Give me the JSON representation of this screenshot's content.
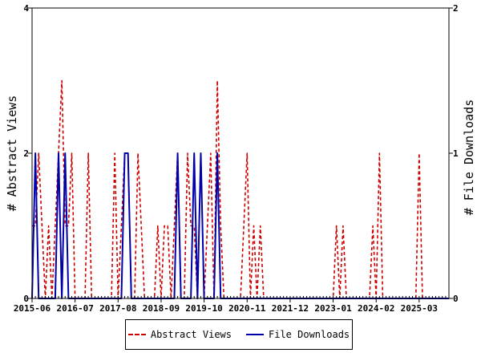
{
  "chart_data": {
    "type": "line",
    "title": "",
    "y_left": {
      "label": "# Abstract Views",
      "ticks": [
        "0",
        "2",
        "4"
      ],
      "range": [
        0,
        4
      ]
    },
    "y_right": {
      "label": "# File Downloads",
      "ticks": [
        "0",
        "1",
        "2"
      ],
      "range": [
        0,
        2
      ]
    },
    "x": {
      "tick_labels": [
        "2015-06",
        "2016-07",
        "2017-08",
        "2018-09",
        "2019-10",
        "2020-11",
        "2021-12",
        "2023-01",
        "2024-02",
        "2025-03"
      ],
      "range": [
        "2015-06",
        "2025-12"
      ]
    },
    "legend_placement": "bottom",
    "grid": false,
    "series": [
      {
        "name": "Abstract Views",
        "axis": "left",
        "style": "dashed",
        "color": "#cc0000",
        "points": [
          [
            "2015-06",
            1
          ],
          [
            "2015-07",
            1
          ],
          [
            "2015-08",
            2
          ],
          [
            "2015-09",
            1
          ],
          [
            "2015-10",
            0
          ],
          [
            "2015-11",
            1
          ],
          [
            "2015-12",
            0
          ],
          [
            "2016-01",
            1
          ],
          [
            "2016-02",
            2
          ],
          [
            "2016-03",
            3
          ],
          [
            "2016-04",
            1
          ],
          [
            "2016-05",
            1
          ],
          [
            "2016-06",
            2
          ],
          [
            "2016-07",
            0
          ],
          [
            "2016-08",
            0
          ],
          [
            "2016-09",
            0
          ],
          [
            "2016-10",
            0
          ],
          [
            "2016-11",
            2
          ],
          [
            "2016-12",
            0
          ],
          [
            "2017-01",
            0
          ],
          [
            "2017-02",
            0
          ],
          [
            "2017-03",
            0
          ],
          [
            "2017-04",
            0
          ],
          [
            "2017-05",
            0
          ],
          [
            "2017-06",
            0
          ],
          [
            "2017-07",
            2
          ],
          [
            "2017-08",
            0
          ],
          [
            "2017-09",
            1
          ],
          [
            "2017-10",
            2
          ],
          [
            "2017-11",
            2
          ],
          [
            "2017-12",
            0
          ],
          [
            "2018-01",
            0
          ],
          [
            "2018-02",
            2
          ],
          [
            "2018-03",
            1
          ],
          [
            "2018-04",
            0
          ],
          [
            "2018-05",
            0
          ],
          [
            "2018-06",
            0
          ],
          [
            "2018-07",
            0
          ],
          [
            "2018-08",
            1
          ],
          [
            "2018-09",
            0
          ],
          [
            "2018-10",
            1
          ],
          [
            "2018-11",
            1
          ],
          [
            "2018-12",
            0
          ],
          [
            "2019-01",
            1
          ],
          [
            "2019-02",
            2
          ],
          [
            "2019-03",
            0
          ],
          [
            "2019-04",
            0
          ],
          [
            "2019-05",
            2
          ],
          [
            "2019-06",
            1
          ],
          [
            "2019-07",
            1
          ],
          [
            "2019-08",
            0
          ],
          [
            "2019-09",
            2
          ],
          [
            "2019-10",
            0
          ],
          [
            "2019-11",
            1
          ],
          [
            "2019-12",
            2
          ],
          [
            "2020-01",
            0
          ],
          [
            "2020-02",
            3
          ],
          [
            "2020-03",
            1
          ],
          [
            "2020-04",
            0
          ],
          [
            "2020-05",
            0
          ],
          [
            "2020-06",
            0
          ],
          [
            "2020-07",
            0
          ],
          [
            "2020-08",
            0
          ],
          [
            "2020-09",
            0
          ],
          [
            "2020-10",
            1
          ],
          [
            "2020-11",
            2
          ],
          [
            "2020-12",
            0
          ],
          [
            "2021-01",
            1
          ],
          [
            "2021-02",
            0
          ],
          [
            "2021-03",
            1
          ],
          [
            "2021-04",
            0
          ],
          [
            "2021-05",
            0
          ],
          [
            "2021-06",
            0
          ],
          [
            "2021-07",
            0
          ],
          [
            "2021-08",
            0
          ],
          [
            "2021-09",
            0
          ],
          [
            "2021-10",
            0
          ],
          [
            "2021-11",
            0
          ],
          [
            "2021-12",
            0
          ],
          [
            "2022-01",
            0
          ],
          [
            "2022-02",
            0
          ],
          [
            "2022-03",
            0
          ],
          [
            "2022-04",
            0
          ],
          [
            "2022-05",
            0
          ],
          [
            "2022-06",
            0
          ],
          [
            "2022-07",
            0
          ],
          [
            "2022-08",
            0
          ],
          [
            "2022-09",
            0
          ],
          [
            "2022-10",
            0
          ],
          [
            "2022-11",
            0
          ],
          [
            "2022-12",
            0
          ],
          [
            "2023-01",
            0
          ],
          [
            "2023-02",
            1
          ],
          [
            "2023-03",
            0
          ],
          [
            "2023-04",
            1
          ],
          [
            "2023-05",
            0
          ],
          [
            "2023-06",
            0
          ],
          [
            "2023-07",
            0
          ],
          [
            "2023-08",
            0
          ],
          [
            "2023-09",
            0
          ],
          [
            "2023-10",
            0
          ],
          [
            "2023-11",
            0
          ],
          [
            "2023-12",
            0
          ],
          [
            "2024-01",
            1
          ],
          [
            "2024-02",
            0
          ],
          [
            "2024-03",
            2
          ],
          [
            "2024-04",
            0
          ],
          [
            "2024-05",
            0
          ],
          [
            "2024-06",
            0
          ],
          [
            "2024-07",
            0
          ],
          [
            "2024-08",
            0
          ],
          [
            "2024-09",
            0
          ],
          [
            "2024-10",
            0
          ],
          [
            "2024-11",
            0
          ],
          [
            "2024-12",
            0
          ],
          [
            "2025-01",
            0
          ],
          [
            "2025-02",
            0
          ],
          [
            "2025-03",
            2
          ],
          [
            "2025-04",
            0
          ],
          [
            "2025-05",
            0
          ],
          [
            "2025-06",
            0
          ],
          [
            "2025-07",
            0
          ],
          [
            "2025-08",
            0
          ],
          [
            "2025-09",
            0
          ],
          [
            "2025-10",
            0
          ],
          [
            "2025-11",
            0
          ],
          [
            "2025-12",
            0
          ]
        ]
      },
      {
        "name": "File Downloads",
        "axis": "right",
        "style": "solid",
        "color": "#0000aa",
        "points": [
          [
            "2015-06",
            0
          ],
          [
            "2015-07",
            1
          ],
          [
            "2015-08",
            0
          ],
          [
            "2015-09",
            0
          ],
          [
            "2015-10",
            0
          ],
          [
            "2015-11",
            0
          ],
          [
            "2015-12",
            0
          ],
          [
            "2016-01",
            0
          ],
          [
            "2016-02",
            1
          ],
          [
            "2016-03",
            0
          ],
          [
            "2016-04",
            1
          ],
          [
            "2016-05",
            0
          ],
          [
            "2016-06",
            0
          ],
          [
            "2016-07",
            0
          ],
          [
            "2016-08",
            0
          ],
          [
            "2016-09",
            0
          ],
          [
            "2016-10",
            0
          ],
          [
            "2016-11",
            0
          ],
          [
            "2016-12",
            0
          ],
          [
            "2017-01",
            0
          ],
          [
            "2017-02",
            0
          ],
          [
            "2017-03",
            0
          ],
          [
            "2017-04",
            0
          ],
          [
            "2017-05",
            0
          ],
          [
            "2017-06",
            0
          ],
          [
            "2017-07",
            0
          ],
          [
            "2017-08",
            0
          ],
          [
            "2017-09",
            0
          ],
          [
            "2017-10",
            1
          ],
          [
            "2017-11",
            1
          ],
          [
            "2017-12",
            0
          ],
          [
            "2018-01",
            0
          ],
          [
            "2018-02",
            0
          ],
          [
            "2018-03",
            0
          ],
          [
            "2018-04",
            0
          ],
          [
            "2018-05",
            0
          ],
          [
            "2018-06",
            0
          ],
          [
            "2018-07",
            0
          ],
          [
            "2018-08",
            0
          ],
          [
            "2018-09",
            0
          ],
          [
            "2018-10",
            0
          ],
          [
            "2018-11",
            0
          ],
          [
            "2018-12",
            0
          ],
          [
            "2019-01",
            0
          ],
          [
            "2019-02",
            1
          ],
          [
            "2019-03",
            0
          ],
          [
            "2019-04",
            0
          ],
          [
            "2019-05",
            0
          ],
          [
            "2019-06",
            0
          ],
          [
            "2019-07",
            1
          ],
          [
            "2019-08",
            0
          ],
          [
            "2019-09",
            1
          ],
          [
            "2019-10",
            0
          ],
          [
            "2019-11",
            0
          ],
          [
            "2019-12",
            0
          ],
          [
            "2020-01",
            0
          ],
          [
            "2020-02",
            1
          ],
          [
            "2020-03",
            0
          ],
          [
            "2020-04",
            0
          ],
          [
            "2020-05",
            0
          ],
          [
            "2020-06",
            0
          ],
          [
            "2020-07",
            0
          ],
          [
            "2020-08",
            0
          ],
          [
            "2020-09",
            0
          ],
          [
            "2020-10",
            0
          ],
          [
            "2020-11",
            0
          ],
          [
            "2020-12",
            0
          ],
          [
            "2021-01",
            0
          ],
          [
            "2021-02",
            0
          ],
          [
            "2021-03",
            0
          ],
          [
            "2021-04",
            0
          ],
          [
            "2021-05",
            0
          ],
          [
            "2021-06",
            0
          ],
          [
            "2021-07",
            0
          ],
          [
            "2021-08",
            0
          ],
          [
            "2021-09",
            0
          ],
          [
            "2021-10",
            0
          ],
          [
            "2021-11",
            0
          ],
          [
            "2021-12",
            0
          ],
          [
            "2022-01",
            0
          ],
          [
            "2022-02",
            0
          ],
          [
            "2022-03",
            0
          ],
          [
            "2022-04",
            0
          ],
          [
            "2022-05",
            0
          ],
          [
            "2022-06",
            0
          ],
          [
            "2022-07",
            0
          ],
          [
            "2022-08",
            0
          ],
          [
            "2022-09",
            0
          ],
          [
            "2022-10",
            0
          ],
          [
            "2022-11",
            0
          ],
          [
            "2022-12",
            0
          ],
          [
            "2023-01",
            0
          ],
          [
            "2023-02",
            0
          ],
          [
            "2023-03",
            0
          ],
          [
            "2023-04",
            0
          ],
          [
            "2023-05",
            0
          ],
          [
            "2023-06",
            0
          ],
          [
            "2023-07",
            0
          ],
          [
            "2023-08",
            0
          ],
          [
            "2023-09",
            0
          ],
          [
            "2023-10",
            0
          ],
          [
            "2023-11",
            0
          ],
          [
            "2023-12",
            0
          ],
          [
            "2024-01",
            0
          ],
          [
            "2024-02",
            0
          ],
          [
            "2024-03",
            0
          ],
          [
            "2024-04",
            0
          ],
          [
            "2024-05",
            0
          ],
          [
            "2024-06",
            0
          ],
          [
            "2024-07",
            0
          ],
          [
            "2024-08",
            0
          ],
          [
            "2024-09",
            0
          ],
          [
            "2024-10",
            0
          ],
          [
            "2024-11",
            0
          ],
          [
            "2024-12",
            0
          ],
          [
            "2025-01",
            0
          ],
          [
            "2025-02",
            0
          ],
          [
            "2025-03",
            0
          ],
          [
            "2025-04",
            0
          ],
          [
            "2025-05",
            0
          ],
          [
            "2025-06",
            0
          ],
          [
            "2025-07",
            0
          ],
          [
            "2025-08",
            0
          ],
          [
            "2025-09",
            0
          ],
          [
            "2025-10",
            0
          ],
          [
            "2025-11",
            0
          ],
          [
            "2025-12",
            0
          ]
        ]
      }
    ]
  },
  "legend": {
    "abstract_views_label": "Abstract Views",
    "file_downloads_label": "File Downloads"
  }
}
